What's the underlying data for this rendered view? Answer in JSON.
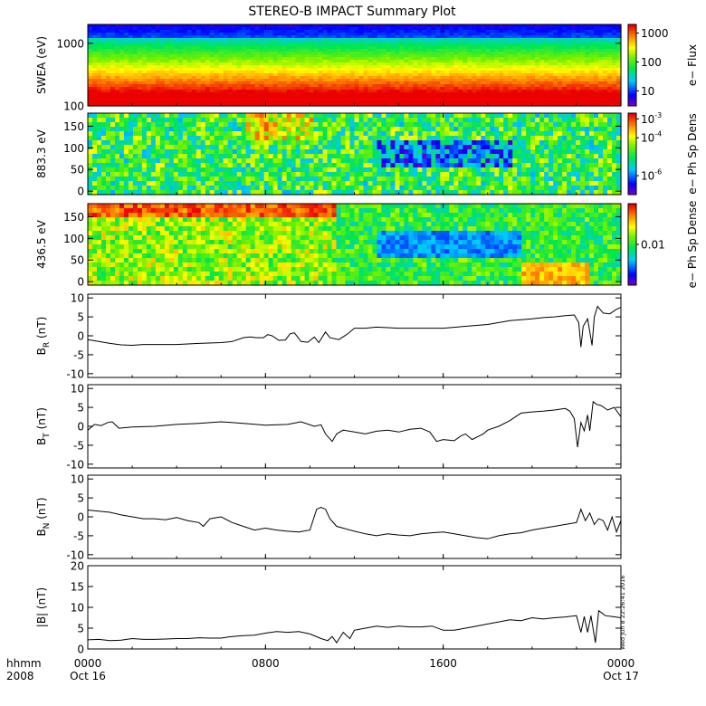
{
  "title": "STEREO-B IMPACT Summary Plot",
  "footer": {
    "hhmm_label": "hhmm",
    "year_label": "2008",
    "timestamp": "Wed Jun 8 22:26:41 2016"
  },
  "chart_data": [
    {
      "type": "heatmap",
      "id": "swea",
      "ylabel": "SWEA (eV)",
      "ylog": true,
      "ylim": [
        100,
        2000
      ],
      "yticks": [
        {
          "v": 100,
          "t": "100"
        },
        {
          "v": 1000,
          "t": "1000"
        }
      ],
      "colorbar": {
        "label": "e− Flux",
        "log": true,
        "range": [
          3,
          2000
        ],
        "ticks": [
          {
            "v": 10,
            "t": "10"
          },
          {
            "v": 100,
            "t": "100"
          },
          {
            "v": 1000,
            "t": "1000"
          }
        ]
      }
    },
    {
      "type": "heatmap",
      "id": "pad883",
      "ylabel": "883.3 eV",
      "ylim": [
        -8,
        180
      ],
      "yticks": [
        {
          "v": 0,
          "t": "0"
        },
        {
          "v": 50,
          "t": "50"
        },
        {
          "v": 100,
          "t": "100"
        },
        {
          "v": 150,
          "t": "150"
        }
      ],
      "colorbar": {
        "label": "e− Ph Sp Dens",
        "log": true,
        "range": [
          1e-07,
          0.002
        ],
        "ticks": [
          {
            "v": 0.001,
            "t": "10",
            "e": "-3"
          },
          {
            "v": 0.0001,
            "t": "10",
            "e": "-4"
          },
          {
            "v": 1e-06,
            "t": "10",
            "e": "-6"
          }
        ]
      }
    },
    {
      "type": "heatmap",
      "id": "pad436",
      "ylabel": "436.5 eV",
      "ylim": [
        -8,
        180
      ],
      "yticks": [
        {
          "v": 0,
          "t": "0"
        },
        {
          "v": 50,
          "t": "50"
        },
        {
          "v": 100,
          "t": "100"
        },
        {
          "v": 150,
          "t": "150"
        }
      ],
      "colorbar": {
        "label": "e− Ph Sp Dense",
        "log": true,
        "range": [
          0.002,
          0.05
        ],
        "ticks": [
          {
            "v": 0.01,
            "t": "0.01"
          }
        ]
      }
    },
    {
      "type": "line",
      "id": "br",
      "ylabel": "B",
      "ylabel_sub": "R",
      "ylabel_unit": " (nT)",
      "ylim": [
        -11,
        11
      ],
      "yticks": [
        -10,
        -5,
        0,
        5,
        10
      ],
      "x": [
        0,
        0.5,
        1,
        1.5,
        2,
        2.5,
        3,
        4,
        5,
        6,
        6.5,
        7,
        7.3,
        7.6,
        7.9,
        8.1,
        8.3,
        8.6,
        8.9,
        9.1,
        9.3,
        9.6,
        9.9,
        10.2,
        10.4,
        10.7,
        10.9,
        11.3,
        11.7,
        12,
        12.5,
        13,
        14,
        15,
        16,
        17,
        18,
        19,
        20,
        20.5,
        21,
        21.5,
        21.9,
        22.1,
        22.2,
        22.3,
        22.5,
        22.7,
        22.8,
        22.95,
        23.2,
        23.5,
        23.8,
        24
      ],
      "y": [
        -1,
        -1.5,
        -2,
        -2.4,
        -2.5,
        -2.3,
        -2.3,
        -2.3,
        -2,
        -1.8,
        -1.5,
        -0.5,
        -0.3,
        -0.5,
        -0.5,
        0.3,
        0,
        -1.2,
        -1.1,
        0.5,
        0.8,
        -1.5,
        -1.7,
        -0.3,
        -1.8,
        1,
        -0.5,
        -1,
        0.5,
        2,
        2,
        2.3,
        2,
        2,
        2,
        2.5,
        3,
        4,
        4.5,
        4.8,
        5,
        5.3,
        5.5,
        3.5,
        -3,
        2.5,
        4.5,
        -2.5,
        5,
        7.8,
        6,
        5.8,
        7,
        7.5
      ]
    },
    {
      "type": "line",
      "id": "bt",
      "ylabel": "B",
      "ylabel_sub": "T",
      "ylabel_unit": " (nT)",
      "ylim": [
        -11,
        11
      ],
      "yticks": [
        -10,
        -5,
        0,
        5,
        10
      ],
      "x": [
        0,
        0.3,
        0.6,
        0.9,
        1.1,
        1.4,
        2,
        3,
        4,
        5,
        6,
        7,
        8,
        9,
        9.6,
        10.2,
        10.5,
        10.7,
        11,
        11.2,
        11.5,
        12,
        12.5,
        13,
        13.5,
        14,
        14.5,
        15,
        15.4,
        15.7,
        16,
        16.5,
        16.8,
        17,
        17.3,
        17.8,
        18,
        18.5,
        19,
        19.5,
        20,
        20.5,
        21,
        21.5,
        21.7,
        21.9,
        22.05,
        22.2,
        22.35,
        22.5,
        22.6,
        22.75,
        22.9,
        23.1,
        23.4,
        23.7,
        24
      ],
      "y": [
        -1,
        0.5,
        0.2,
        1,
        1.2,
        -0.5,
        -0.2,
        0,
        0.5,
        0.8,
        1.2,
        0.8,
        0.3,
        0.5,
        1.2,
        0,
        0.4,
        -2,
        -4,
        -2,
        -1,
        -1.5,
        -2,
        -1.3,
        -1,
        -1.5,
        -0.8,
        -0.5,
        -1.5,
        -4,
        -3.5,
        -3.8,
        -2.5,
        -2,
        -3.5,
        -2,
        -1,
        0,
        1.5,
        3.5,
        3.8,
        4,
        4.3,
        4.7,
        4,
        2,
        -5.5,
        1,
        -1.2,
        3,
        -1.2,
        6.5,
        5.8,
        5.5,
        4.3,
        5,
        2.5
      ]
    },
    {
      "type": "line",
      "id": "bn",
      "ylabel": "B",
      "ylabel_sub": "N",
      "ylabel_unit": " (nT)",
      "ylim": [
        -11,
        11
      ],
      "yticks": [
        -10,
        -5,
        0,
        5,
        10
      ],
      "x": [
        0,
        0.5,
        1,
        1.5,
        2,
        2.5,
        3,
        3.5,
        4,
        4.5,
        5,
        5.2,
        5.5,
        6,
        6.5,
        7,
        7.5,
        8,
        8.5,
        9,
        9.5,
        10,
        10.3,
        10.5,
        10.7,
        10.9,
        11.2,
        11.5,
        12,
        12.5,
        13,
        13.5,
        14,
        14.5,
        15,
        15.5,
        16,
        16.5,
        17,
        17.5,
        18,
        18.5,
        19,
        19.5,
        20,
        20.5,
        21,
        21.5,
        22,
        22.2,
        22.4,
        22.6,
        22.8,
        23,
        23.2,
        23.4,
        23.6,
        23.8,
        24
      ],
      "y": [
        1.8,
        1.5,
        1.2,
        0.5,
        0,
        -0.5,
        -0.5,
        -0.8,
        -0.2,
        -1,
        -1.5,
        -2.5,
        -0.5,
        0,
        -1.5,
        -2.5,
        -3.5,
        -3,
        -3.5,
        -3.8,
        -4,
        -3.5,
        2,
        2.5,
        2,
        -0.5,
        -2.5,
        -3,
        -3.8,
        -4.5,
        -5,
        -4.5,
        -4.8,
        -5,
        -4.5,
        -4.2,
        -4,
        -4.5,
        -5,
        -5.5,
        -5.8,
        -5,
        -4.5,
        -4.2,
        -3.5,
        -3,
        -2.5,
        -2,
        -1.5,
        2,
        -1,
        1,
        -2,
        -0.5,
        -1,
        -3.5,
        0,
        -4,
        -1
      ]
    },
    {
      "type": "line",
      "id": "bmag",
      "ylabel": "|B| (nT)",
      "ylim": [
        0,
        20
      ],
      "yticks": [
        0,
        5,
        10,
        15,
        20
      ],
      "x": [
        0,
        0.5,
        1,
        1.5,
        2,
        2.5,
        3,
        3.5,
        4,
        4.5,
        5,
        5.5,
        6,
        6.5,
        7,
        7.5,
        8,
        8.5,
        9,
        9.5,
        10,
        10.5,
        10.8,
        11,
        11.2,
        11.5,
        11.8,
        12,
        12.5,
        13,
        13.5,
        14,
        14.5,
        15,
        15.5,
        16,
        16.5,
        17,
        17.5,
        18,
        18.5,
        19,
        19.5,
        20,
        20.5,
        21,
        21.5,
        22,
        22.2,
        22.35,
        22.5,
        22.65,
        22.85,
        23,
        23.3,
        23.6,
        24
      ],
      "y": [
        2.2,
        2.3,
        2,
        2.1,
        2.5,
        2.3,
        2.3,
        2.4,
        2.5,
        2.5,
        2.7,
        2.6,
        2.6,
        3,
        3.2,
        3.3,
        3.8,
        4.2,
        4,
        4.2,
        3.6,
        2.5,
        2,
        3,
        1.5,
        4,
        2.5,
        4.5,
        5,
        5.5,
        5.2,
        5.5,
        5.3,
        5.3,
        5.5,
        4.5,
        4.5,
        5,
        5.5,
        6,
        6.5,
        7,
        6.8,
        7.5,
        7.2,
        7.5,
        7.7,
        8,
        4,
        7.8,
        4,
        8,
        1.5,
        9.2,
        8,
        7.8,
        7.5
      ]
    }
  ],
  "x_axis": {
    "ticks": [
      {
        "v": 0,
        "t": "0000",
        "d": "Oct 16"
      },
      {
        "v": 8,
        "t": "0800",
        "d": ""
      },
      {
        "v": 16,
        "t": "1600",
        "d": ""
      },
      {
        "v": 24,
        "t": "0000",
        "d": "Oct 17"
      }
    ],
    "range": [
      0,
      24
    ]
  }
}
